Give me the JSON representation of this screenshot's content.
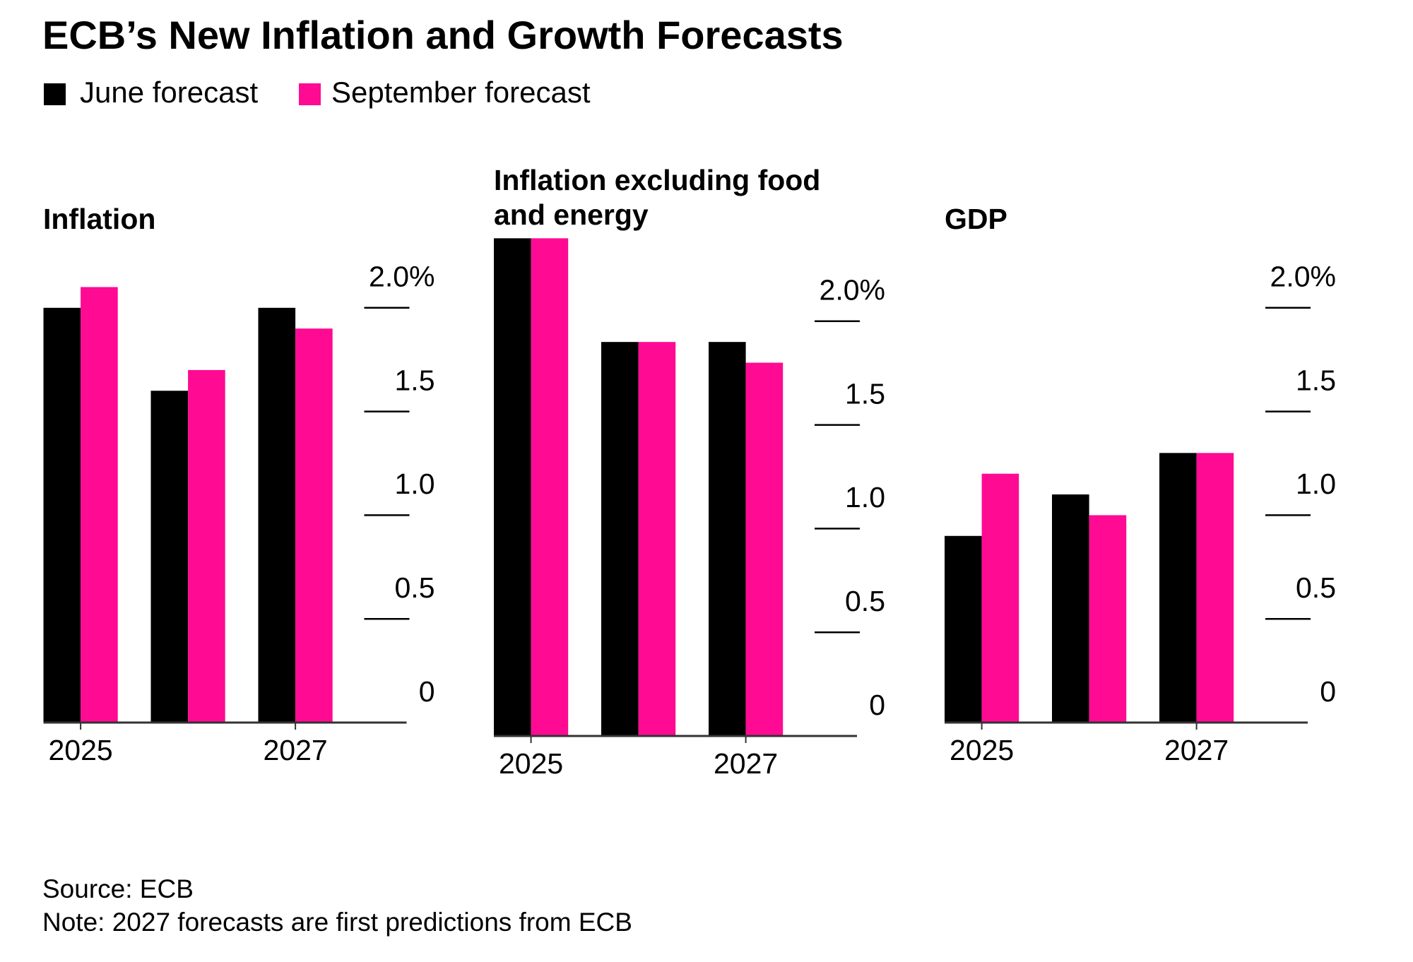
{
  "title": "ECB’s New Inflation and Growth Forecasts",
  "source": "Source: ECB",
  "note": "Note: 2027 forecasts are first predictions from ECB",
  "chart_data": [
    {
      "type": "bar",
      "title": "Inflation",
      "categories": [
        "2025",
        null,
        "2027"
      ],
      "series": [
        {
          "name": "June forecast",
          "color": "#000000",
          "values": [
            2.0,
            1.6,
            2.0
          ]
        },
        {
          "name": "September forecast",
          "color": "#ff0a93",
          "values": [
            2.1,
            1.7,
            1.9
          ]
        }
      ],
      "ylim": [
        0,
        2.1
      ],
      "yticks": [
        0,
        0.5,
        {
          "value": 1,
          "label": "1.0"
        },
        1.5,
        {
          "value": 2,
          "label": "2.0%"
        }
      ]
    },
    {
      "type": "bar",
      "title": "Inflation excluding food and energy",
      "categories": [
        "2025",
        null,
        "2027"
      ],
      "series": [
        {
          "name": "June forecast",
          "color": "#000000",
          "values": [
            2.4,
            1.9,
            1.9
          ]
        },
        {
          "name": "September forecast",
          "color": "#ff0a93",
          "values": [
            2.4,
            1.9,
            1.8
          ]
        }
      ],
      "ylim": [
        0,
        2.4
      ],
      "yticks": [
        0,
        0.5,
        {
          "value": 1,
          "label": "1.0"
        },
        1.5,
        {
          "value": 2,
          "label": "2.0%"
        }
      ]
    },
    {
      "type": "bar",
      "title": "GDP",
      "categories": [
        "2025",
        null,
        "2027"
      ],
      "series": [
        {
          "name": "June forecast",
          "color": "#000000",
          "values": [
            0.9,
            1.1,
            1.3
          ]
        },
        {
          "name": "September forecast",
          "color": "#ff0a93",
          "values": [
            1.2,
            1.0,
            1.3
          ]
        }
      ],
      "ylim": [
        0,
        2.1
      ],
      "yticks": [
        0,
        0.5,
        {
          "value": 1,
          "label": "1.0"
        },
        1.5,
        {
          "value": 2,
          "label": "2.0%"
        }
      ]
    }
  ]
}
